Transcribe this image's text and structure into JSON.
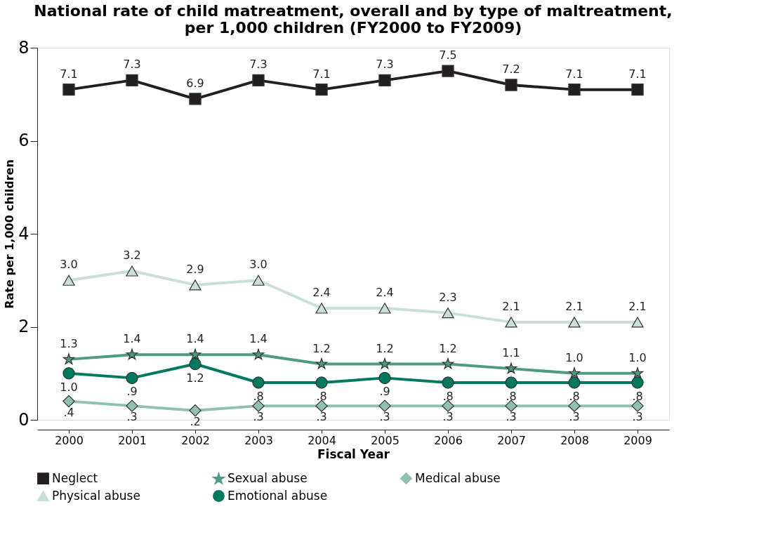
{
  "chart_data": {
    "type": "line",
    "title": [
      "National rate of child matreatment, overall and by type of maltreatment,",
      "per 1,000 children (FY2000 to FY2009)"
    ],
    "xlabel": "Fiscal Year",
    "ylabel": "Rate per 1,000 children",
    "categories": [
      "2000",
      "2001",
      "2002",
      "2003",
      "2004",
      "2005",
      "2006",
      "2007",
      "2008",
      "2009"
    ],
    "ylim": [
      0,
      8
    ],
    "yticks": [
      0,
      2,
      4,
      6,
      8
    ],
    "grid": false,
    "legend": "bottom",
    "series": [
      {
        "name": "Neglect",
        "color": "#231f20",
        "marker": "square",
        "values": [
          7.1,
          7.3,
          6.9,
          7.3,
          7.1,
          7.3,
          7.5,
          7.2,
          7.1,
          7.1
        ],
        "value_labels": [
          "7.1",
          "7.3",
          "6.9",
          "7.3",
          "7.1",
          "7.3",
          "7.5",
          "7.2",
          "7.1",
          "7.1"
        ]
      },
      {
        "name": "Sexual abuse",
        "color": "#4e9a82",
        "marker": "star",
        "values": [
          1.3,
          1.4,
          1.4,
          1.4,
          1.2,
          1.2,
          1.2,
          1.1,
          1.0,
          1.0
        ],
        "value_labels": [
          "1.3",
          "1.4",
          "1.4",
          "1.4",
          "1.2",
          "1.2",
          "1.2",
          "1.1",
          "1.0",
          "1.0"
        ]
      },
      {
        "name": "Medical abuse",
        "color": "#8fc1b0",
        "marker": "diamond",
        "values": [
          0.4,
          0.3,
          0.2,
          0.3,
          0.3,
          0.3,
          0.3,
          0.3,
          0.3,
          0.3
        ],
        "value_labels": [
          ".4",
          ".3",
          ".2",
          ".3",
          ".3",
          ".3",
          ".3",
          ".3",
          ".3",
          ".3"
        ]
      },
      {
        "name": "Physical abuse",
        "color": "#c8e0d5",
        "marker": "triangle",
        "values": [
          3.0,
          3.2,
          2.9,
          3.0,
          2.4,
          2.4,
          2.3,
          2.1,
          2.1,
          2.1
        ],
        "value_labels": [
          "3.0",
          "3.2",
          "2.9",
          "3.0",
          "2.4",
          "2.4",
          "2.3",
          "2.1",
          "2.1",
          "2.1"
        ]
      },
      {
        "name": "Emotional abuse",
        "color": "#007a5e",
        "marker": "circle",
        "values": [
          1.0,
          0.9,
          1.2,
          0.8,
          0.8,
          0.9,
          0.8,
          0.8,
          0.8,
          0.8
        ],
        "value_labels": [
          "1.0",
          ".9",
          "1.2",
          ".8",
          ".8",
          ".9",
          ".8",
          ".8",
          ".8",
          ".8"
        ]
      }
    ]
  }
}
